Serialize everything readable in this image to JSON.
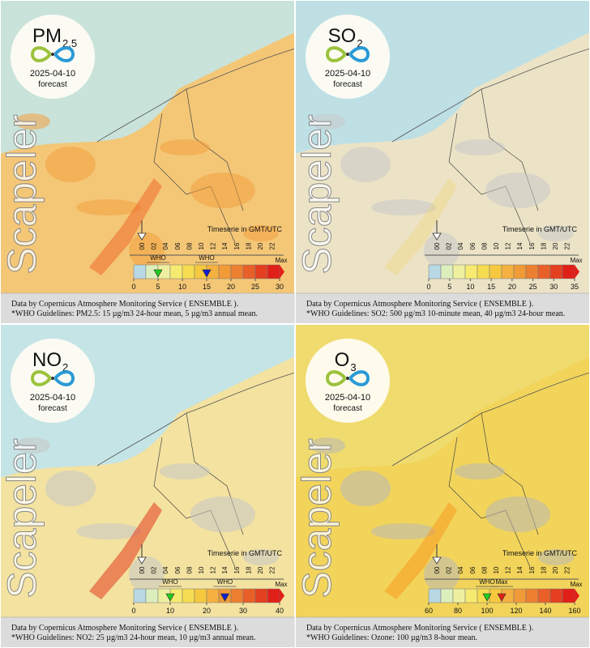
{
  "panels": [
    {
      "pollutant": "PM",
      "subscript": "2.5",
      "date": "2025-04-10",
      "status": "forecast",
      "watermark": "Scapeler",
      "timeserie_label": "Timeserie in GMT/UTC",
      "hours": [
        "00",
        "02",
        "04",
        "06",
        "08",
        "10",
        "12",
        "14",
        "16",
        "18",
        "20",
        "22"
      ],
      "scale_ticks": [
        0,
        5,
        10,
        15,
        20,
        25,
        30
      ],
      "max_label": "Max",
      "who_markers": [
        {
          "label": "WHO",
          "value": 5
        },
        {
          "label": "WHO",
          "value": 15
        }
      ],
      "caption": [
        "Data by Copernicus Atmosphere Monitoring Service ( ENSEMBLE ).",
        "*WHO Guidelines: PM2.5: 15 µg/m3 24-hour mean, 5 µg/m3 annual mean."
      ]
    },
    {
      "pollutant": "SO",
      "subscript": "2",
      "date": "2025-04-10",
      "status": "forecast",
      "watermark": "Scapeler",
      "timeserie_label": "Timeserie in GMT/UTC",
      "hours": [
        "00",
        "02",
        "04",
        "06",
        "08",
        "10",
        "12",
        "14",
        "16",
        "18",
        "20",
        "22"
      ],
      "scale_ticks": [
        0,
        5,
        10,
        15,
        20,
        25,
        30,
        35
      ],
      "max_label": "Max",
      "who_markers": [],
      "caption": [
        "Data by Copernicus Atmosphere Monitoring Service ( ENSEMBLE ).",
        "*WHO Guidelines: SO2: 500 µg/m3 10-minute mean, 40 µg/m3 24-hour mean."
      ]
    },
    {
      "pollutant": "NO",
      "subscript": "2",
      "date": "2025-04-10",
      "status": "forecast",
      "watermark": "Scapeler",
      "timeserie_label": "Timeserie in GMT/UTC",
      "hours": [
        "00",
        "02",
        "04",
        "06",
        "08",
        "10",
        "12",
        "14",
        "16",
        "18",
        "20",
        "22"
      ],
      "scale_ticks": [
        0,
        10,
        20,
        30,
        40
      ],
      "max_label": "Max",
      "who_markers": [
        {
          "label": "WHO",
          "value": 10
        },
        {
          "label": "WHO",
          "value": 25
        }
      ],
      "caption": [
        "Data by Copernicus Atmosphere Monitoring Service ( ENSEMBLE ).",
        "*WHO Guidelines: NO2: 25 µg/m3 24-hour mean, 10 µg/m3 annual mean."
      ]
    },
    {
      "pollutant": "O",
      "subscript": "3",
      "date": "2025-04-10",
      "status": "forecast",
      "watermark": "Scapeler",
      "timeserie_label": "Timeserie in GMT/UTC",
      "hours": [
        "00",
        "02",
        "04",
        "06",
        "08",
        "10",
        "12",
        "14",
        "16",
        "18",
        "20",
        "22"
      ],
      "scale_ticks": [
        60,
        80,
        100,
        120,
        140,
        160
      ],
      "max_label": "Max",
      "who_markers": [
        {
          "label": "WHO",
          "value": 100
        },
        {
          "label": "Max",
          "value": 110
        }
      ],
      "caption": [
        "Data by Copernicus Atmosphere Monitoring Service ( ENSEMBLE ).",
        "*WHO Guidelines: Ozone: 100 µg/m3 8-hour mean."
      ]
    }
  ]
}
